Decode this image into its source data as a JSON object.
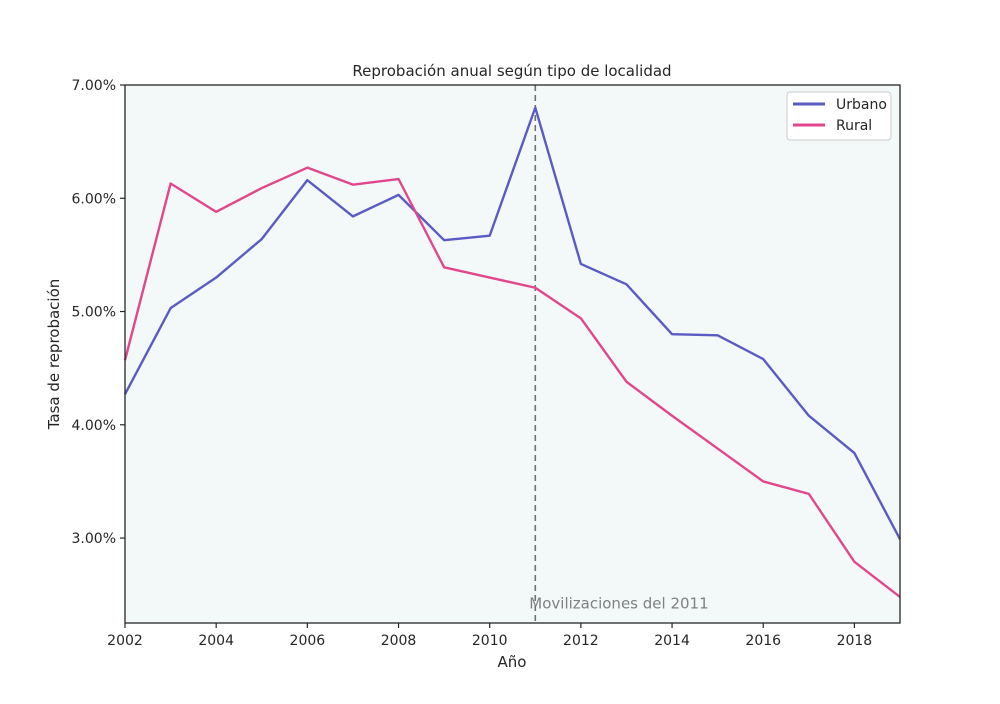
{
  "chart_data": {
    "type": "line",
    "title": "Reprobación anual según tipo de localidad",
    "xlabel": "Año",
    "ylabel": "Tasa de reprobación",
    "xlim": [
      2002,
      2019
    ],
    "ylim": [
      2.25,
      7.0
    ],
    "xticks": [
      2002,
      2004,
      2006,
      2008,
      2010,
      2012,
      2014,
      2016,
      2018
    ],
    "yticks": [
      3.0,
      4.0,
      5.0,
      6.0,
      7.0
    ],
    "ytick_labels": [
      "3.00%",
      "4.00%",
      "5.00%",
      "6.00%",
      "7.00%"
    ],
    "grid": false,
    "legend_position": "top-right",
    "background": "#f3f9f9",
    "x": [
      2002,
      2003,
      2004,
      2005,
      2006,
      2007,
      2008,
      2009,
      2010,
      2011,
      2012,
      2013,
      2014,
      2015,
      2016,
      2017,
      2018,
      2019
    ],
    "series": [
      {
        "name": "Urbano",
        "color": "#5b5bc4",
        "values": [
          4.27,
          5.03,
          5.3,
          5.64,
          6.16,
          5.84,
          6.03,
          5.63,
          5.67,
          6.8,
          5.42,
          5.24,
          4.8,
          4.79,
          4.58,
          4.08,
          3.75,
          2.99
        ]
      },
      {
        "name": "Rural",
        "color": "#e2478c",
        "values": [
          4.57,
          6.13,
          5.88,
          6.09,
          6.27,
          6.12,
          6.17,
          5.39,
          5.3,
          5.21,
          4.94,
          4.38,
          4.08,
          3.79,
          3.5,
          3.39,
          2.79,
          2.48
        ]
      }
    ],
    "annotations": [
      {
        "type": "vline",
        "x": 2011,
        "color": "#707070",
        "style": "dashed"
      },
      {
        "type": "text",
        "text": "Movilizaciones del 2011",
        "x": 2011,
        "y": 2.42
      }
    ]
  }
}
